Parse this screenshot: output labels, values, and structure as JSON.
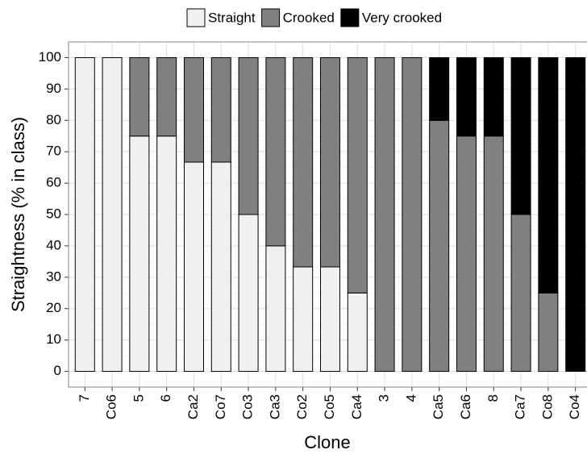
{
  "chart_data": {
    "type": "stacked-bar",
    "x_label": "Clone",
    "y_label": "Straightness (% in class)",
    "categories": [
      "7",
      "Co6",
      "5",
      "6",
      "Ca2",
      "Co7",
      "Co3",
      "Ca3",
      "Co2",
      "Co5",
      "Ca4",
      "3",
      "4",
      "Ca5",
      "Ca6",
      "8",
      "Ca7",
      "Co8",
      "Co4"
    ],
    "series": [
      {
        "name": "Straight",
        "color": "#f0f0f0",
        "values": [
          100,
          100,
          75,
          75,
          66.7,
          66.7,
          50,
          40,
          33.3,
          33.3,
          25,
          0,
          0,
          0,
          0,
          0,
          0,
          0,
          0
        ]
      },
      {
        "name": "Crooked",
        "color": "#808080",
        "values": [
          0,
          0,
          25,
          25,
          33.3,
          33.3,
          50,
          60,
          66.7,
          66.7,
          75,
          100,
          100,
          80,
          75,
          75,
          50,
          25,
          0
        ]
      },
      {
        "name": "Very crooked",
        "color": "#000000",
        "values": [
          0,
          0,
          0,
          0,
          0,
          0,
          0,
          0,
          0,
          0,
          0,
          0,
          0,
          20,
          25,
          25,
          50,
          75,
          100
        ]
      }
    ],
    "ylim": [
      -5,
      105
    ],
    "yticks": [
      0,
      10,
      20,
      30,
      40,
      50,
      60,
      70,
      80,
      90,
      100
    ],
    "grid": true,
    "legend": "top"
  }
}
